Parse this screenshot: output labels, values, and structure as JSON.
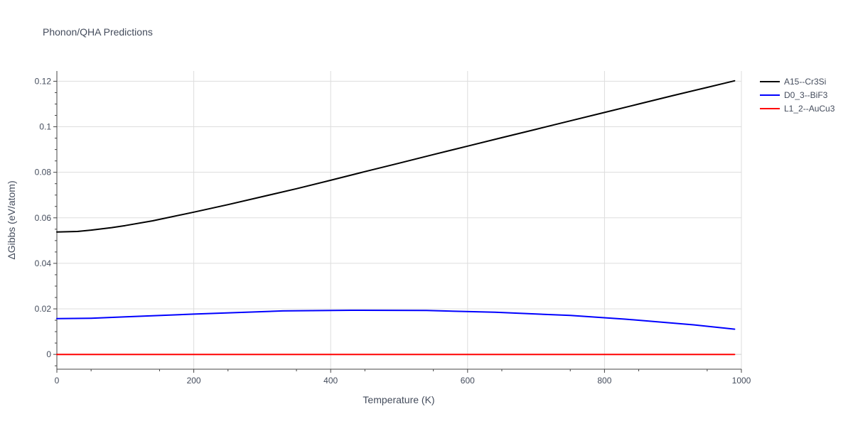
{
  "chart_data": {
    "type": "line",
    "title": "Phonon/QHA Predictions",
    "xlabel": "Temperature (K)",
    "ylabel": "ΔGibbs (eV/atom)",
    "xlim": [
      0,
      1000
    ],
    "ylim": [
      -0.0065,
      0.1245
    ],
    "x_ticks": [
      0,
      200,
      400,
      600,
      800,
      1000
    ],
    "y_ticks": [
      0,
      0.02,
      0.04,
      0.06,
      0.08,
      0.1,
      0.12
    ],
    "x_tick_labels": [
      "0",
      "200",
      "400",
      "600",
      "800",
      "1000"
    ],
    "y_tick_labels": [
      "0",
      "0.02",
      "0.04",
      "0.06",
      "0.08",
      "0.1",
      "0.12"
    ],
    "grid": true,
    "legend_position": "top-right outside",
    "series": [
      {
        "name": "A15--Cr3Si",
        "color": "#000000",
        "x": [
          0,
          30,
          50,
          80,
          100,
          140,
          200,
          250,
          300,
          350,
          400,
          450,
          500,
          550,
          600,
          650,
          700,
          750,
          800,
          850,
          900,
          950,
          990
        ],
        "y": [
          0.0538,
          0.054,
          0.0546,
          0.0557,
          0.0566,
          0.0587,
          0.0625,
          0.0658,
          0.0693,
          0.0728,
          0.0765,
          0.0803,
          0.084,
          0.0878,
          0.0915,
          0.0952,
          0.0989,
          0.1026,
          0.1063,
          0.11,
          0.1137,
          0.1173,
          0.1202
        ]
      },
      {
        "name": "D0_3--BiF3",
        "color": "#0000ff",
        "x": [
          0,
          50,
          100,
          200,
          330,
          430,
          540,
          640,
          750,
          830,
          930,
          990
        ],
        "y": [
          0.0157,
          0.0159,
          0.0165,
          0.0177,
          0.0191,
          0.0194,
          0.0193,
          0.0185,
          0.0171,
          0.0155,
          0.013,
          0.0111
        ]
      },
      {
        "name": "L1_2--AuCu3",
        "color": "#ff0000",
        "x": [
          0,
          990
        ],
        "y": [
          0,
          0
        ]
      }
    ]
  }
}
